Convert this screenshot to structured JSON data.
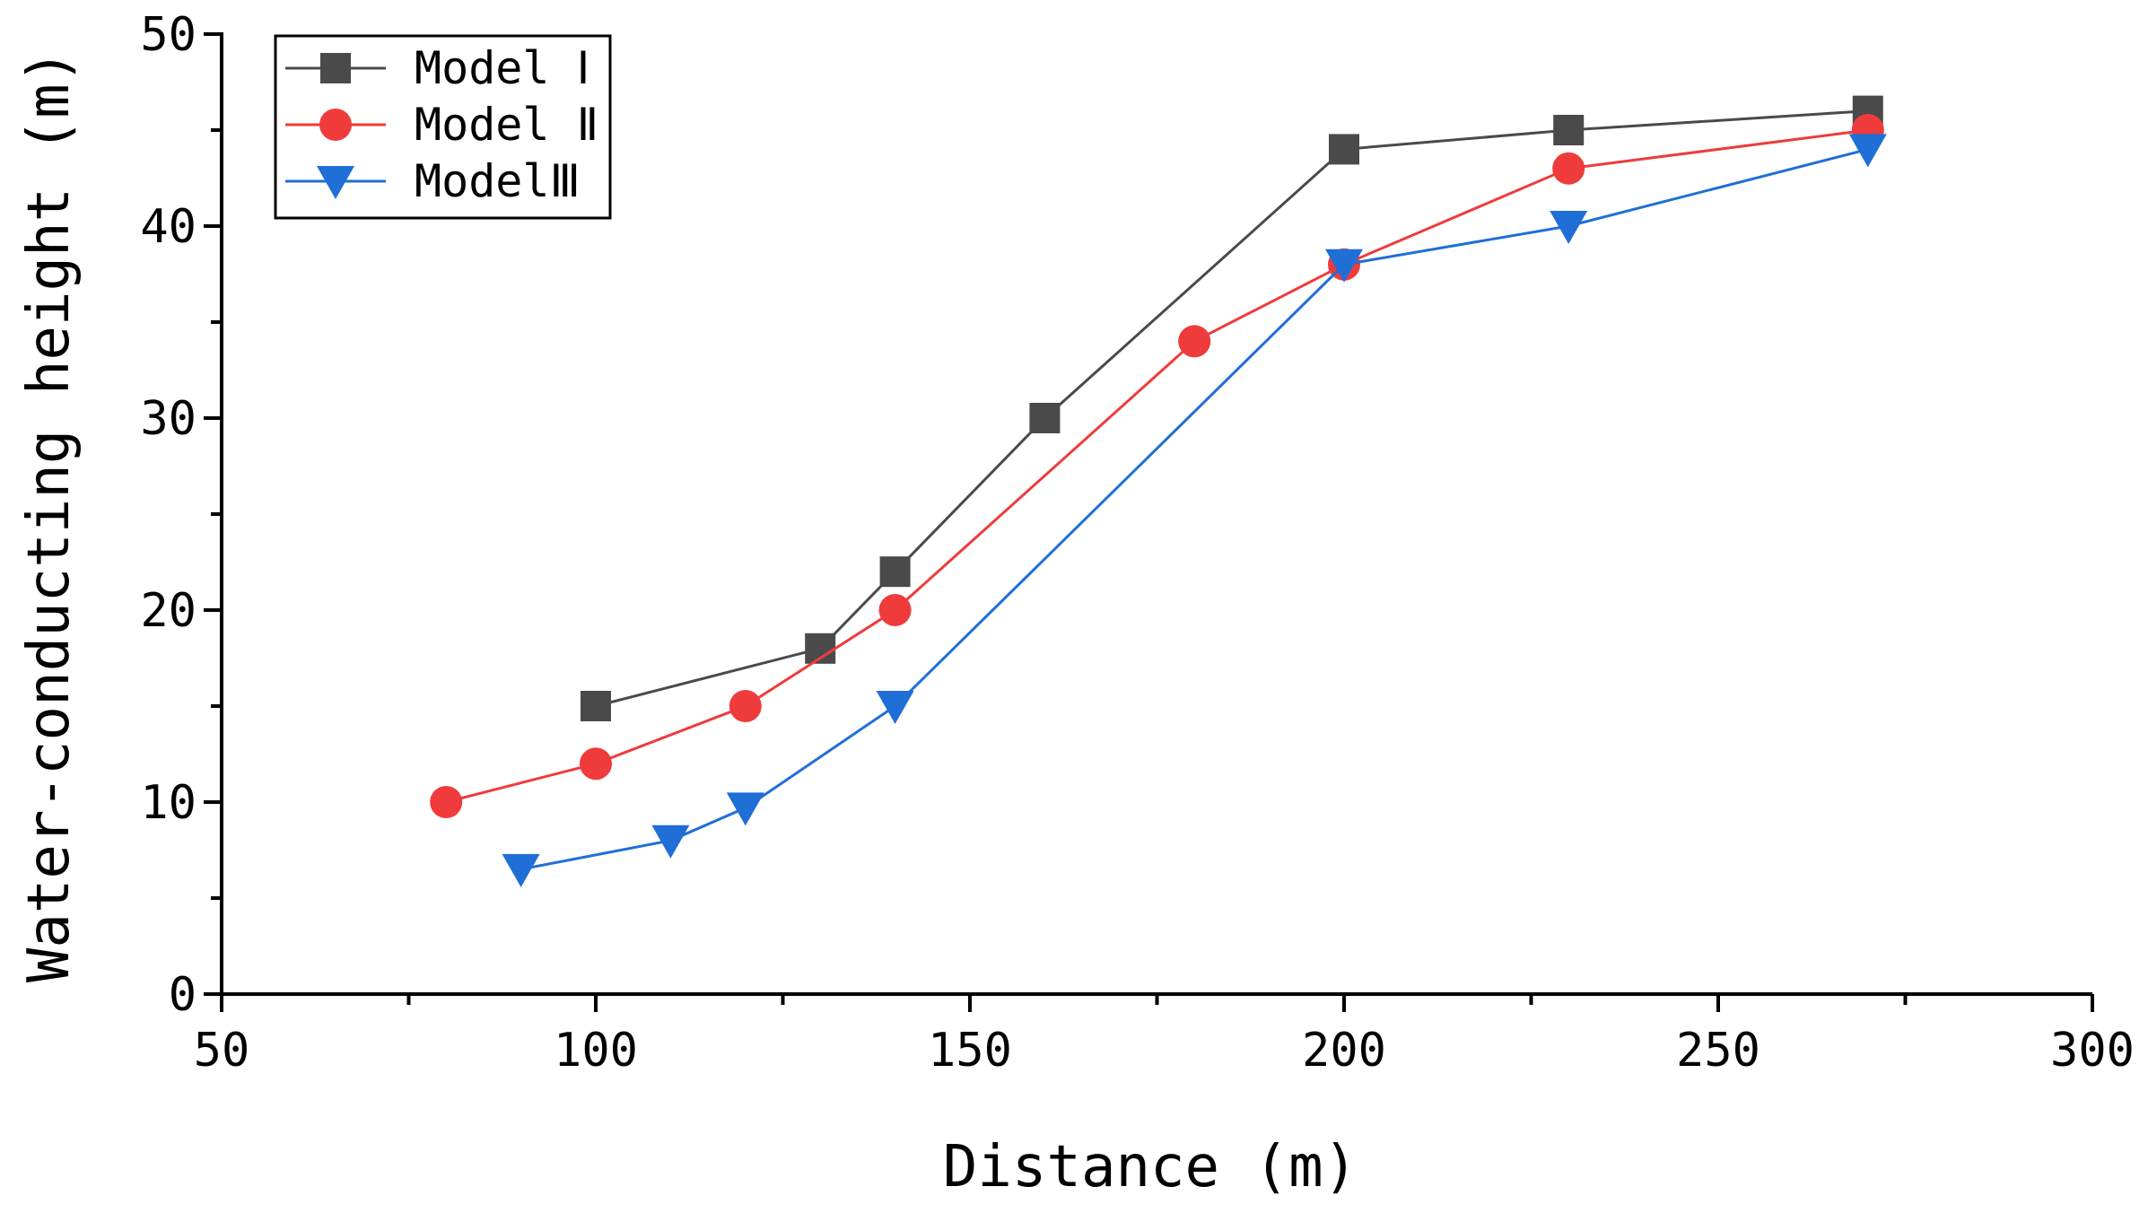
{
  "chart_data": {
    "type": "line",
    "title": "",
    "xlabel": "Distance (m)",
    "ylabel": "Water-conducting height (m)",
    "xlim": [
      50,
      300
    ],
    "ylim": [
      0,
      50
    ],
    "xticks": [
      50,
      100,
      150,
      200,
      250,
      300
    ],
    "yticks": [
      0,
      10,
      20,
      30,
      40,
      50
    ],
    "legend_position": "top-left",
    "series": [
      {
        "name": "Model Ⅰ",
        "color": "#4a4a4a",
        "marker": "square",
        "x": [
          100,
          130,
          140,
          160,
          200,
          230,
          270
        ],
        "y": [
          15,
          18,
          22,
          30,
          44,
          45,
          46
        ]
      },
      {
        "name": "Model Ⅱ",
        "color": "#ef3b3b",
        "marker": "circle",
        "x": [
          80,
          100,
          120,
          140,
          180,
          200,
          230,
          270
        ],
        "y": [
          10,
          12,
          15,
          20,
          34,
          38,
          43,
          45
        ]
      },
      {
        "name": "ModelⅢ",
        "color": "#1f6fd6",
        "marker": "triangle-down",
        "x": [
          90,
          110,
          120,
          140,
          200,
          230,
          270
        ],
        "y": [
          6.5,
          8,
          9.7,
          15,
          38,
          40,
          44
        ]
      }
    ]
  }
}
